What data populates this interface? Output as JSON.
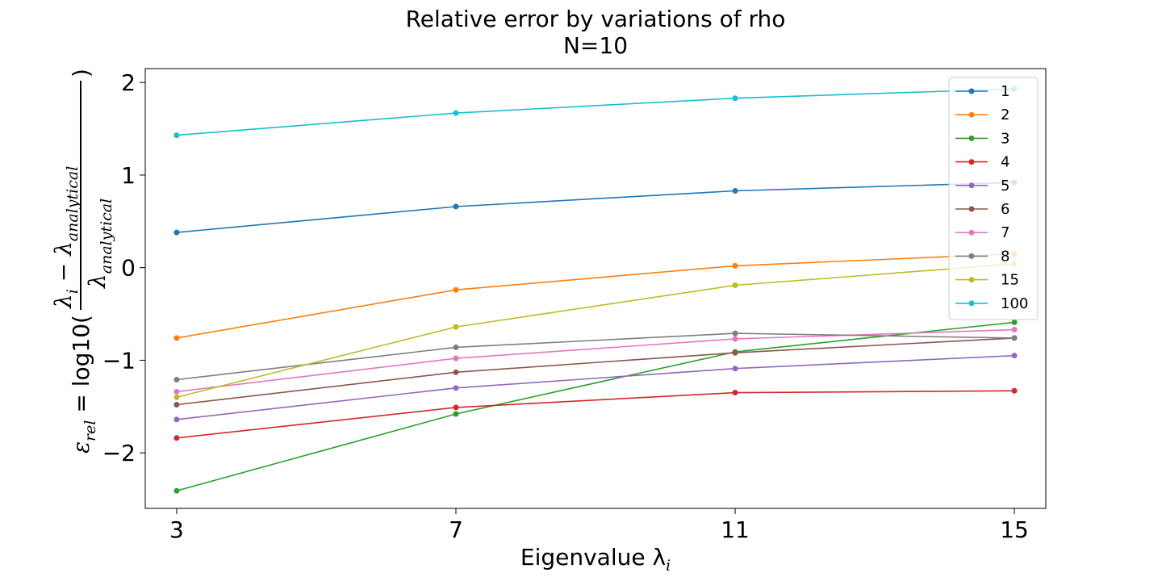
{
  "chart_data": {
    "type": "line",
    "title": "Relative error by variations of rho",
    "subtitle": "N=10",
    "xlabel": "Eigenvalue λ",
    "xlabel_sub": "i",
    "ylabel": {
      "lhs": "ε",
      "lhs_sub": "rel",
      "eq": " = log10(",
      "num": "λ",
      "num_sub": "i",
      "num_minus": " − λ",
      "num_sub2": "analytical",
      "den": "λ",
      "den_sub": "analytical",
      "close": ")"
    },
    "x": [
      3,
      7,
      11,
      15
    ],
    "xticks": [
      "3",
      "7",
      "11",
      "15"
    ],
    "yticks": [
      {
        "v": 2,
        "label": "2"
      },
      {
        "v": 1,
        "label": "1"
      },
      {
        "v": 0,
        "label": "0"
      },
      {
        "v": -1,
        "label": "−1"
      },
      {
        "v": -2,
        "label": "−2"
      }
    ],
    "xlim": [
      2.55,
      15.45
    ],
    "ylim": [
      -2.6,
      2.15
    ],
    "grid": false,
    "legend_position": "top-right",
    "series": [
      {
        "name": "1",
        "color": "#1f77b4",
        "values": [
          0.38,
          0.66,
          0.83,
          0.92
        ]
      },
      {
        "name": "2",
        "color": "#ff7f0e",
        "values": [
          -0.76,
          -0.24,
          0.02,
          0.15
        ]
      },
      {
        "name": "3",
        "color": "#2ca02c",
        "values": [
          -2.41,
          -1.58,
          -0.91,
          -0.59
        ]
      },
      {
        "name": "4",
        "color": "#d62728",
        "values": [
          -1.84,
          -1.51,
          -1.35,
          -1.33
        ]
      },
      {
        "name": "5",
        "color": "#9467bd",
        "values": [
          -1.64,
          -1.3,
          -1.09,
          -0.95
        ]
      },
      {
        "name": "6",
        "color": "#8c564b",
        "values": [
          -1.48,
          -1.13,
          -0.92,
          -0.76
        ]
      },
      {
        "name": "7",
        "color": "#e377c2",
        "values": [
          -1.34,
          -0.98,
          -0.77,
          -0.67
        ]
      },
      {
        "name": "8",
        "color": "#7f7f7f",
        "values": [
          -1.21,
          -0.86,
          -0.71,
          -0.76
        ]
      },
      {
        "name": "15",
        "color": "#bcbd22",
        "values": [
          -1.4,
          -0.64,
          -0.19,
          0.04
        ]
      },
      {
        "name": "100",
        "color": "#17becf",
        "values": [
          1.43,
          1.67,
          1.83,
          1.93
        ]
      }
    ]
  }
}
